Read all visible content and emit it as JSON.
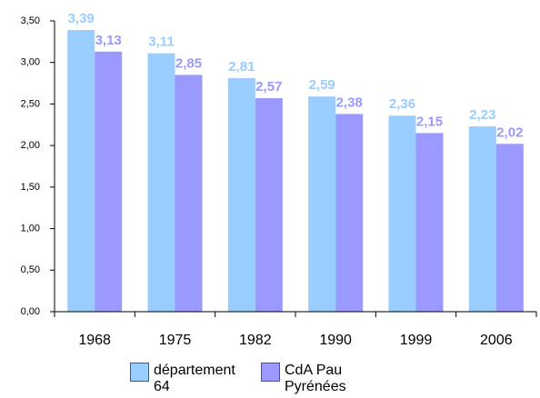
{
  "chart_data": {
    "type": "bar",
    "categories": [
      "1968",
      "1975",
      "1982",
      "1990",
      "1999",
      "2006"
    ],
    "series": [
      {
        "name": "département 64",
        "color": "#99ccff",
        "values": [
          3.39,
          3.11,
          2.81,
          2.59,
          2.36,
          2.23
        ],
        "value_labels": [
          "3,39",
          "3,11",
          "2,81",
          "2,59",
          "2,36",
          "2,23"
        ]
      },
      {
        "name": "CdA Pau Pyrénées",
        "color": "#9999ff",
        "values": [
          3.13,
          2.85,
          2.57,
          2.38,
          2.15,
          2.02
        ],
        "value_labels": [
          "3,13",
          "2,85",
          "2,57",
          "2,38",
          "2,15",
          "2,02"
        ]
      }
    ],
    "ylim": [
      0,
      3.5
    ],
    "yticks": [
      {
        "value": 0,
        "label": "0,00"
      },
      {
        "value": 0.5,
        "label": "0,50"
      },
      {
        "value": 1,
        "label": "1,00"
      },
      {
        "value": 1.5,
        "label": "1,50"
      },
      {
        "value": 2,
        "label": "2,00"
      },
      {
        "value": 2.5,
        "label": "2,50"
      },
      {
        "value": 3,
        "label": "3,00"
      },
      {
        "value": 3.5,
        "label": "3,50"
      }
    ],
    "legend": "bottom"
  }
}
